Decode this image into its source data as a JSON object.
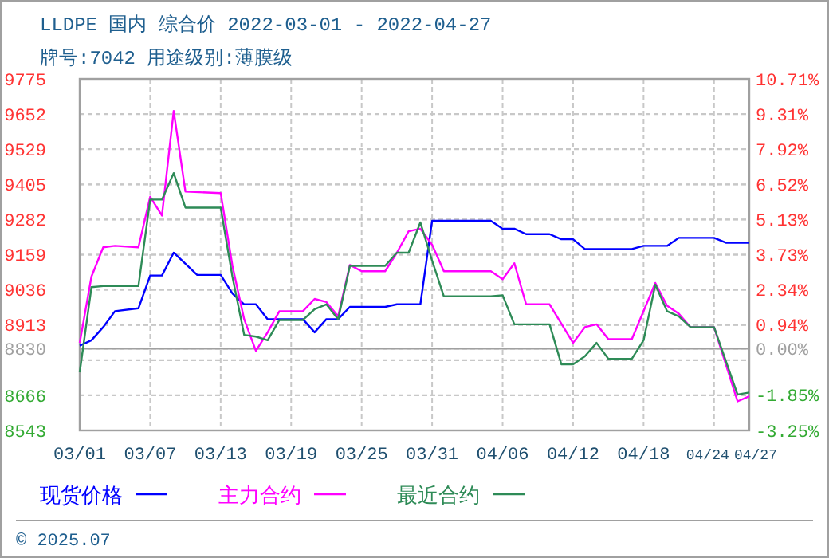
{
  "chart_data": {
    "type": "line",
    "title": "LLDPE 国内 综合价 2022-03-01 - 2022-04-27",
    "subtitle": "牌号:7042 用途级别:薄膜级",
    "xlim": [
      "2022-03-01",
      "2022-04-27"
    ],
    "xticks": [
      {
        "value": "2022-03-01",
        "label": "03/01"
      },
      {
        "value": "2022-03-07",
        "label": "03/07"
      },
      {
        "value": "2022-03-13",
        "label": "03/13"
      },
      {
        "value": "2022-03-19",
        "label": "03/19"
      },
      {
        "value": "2022-03-25",
        "label": "03/25"
      },
      {
        "value": "2022-03-31",
        "label": "03/31"
      },
      {
        "value": "2022-04-06",
        "label": "04/06"
      },
      {
        "value": "2022-04-12",
        "label": "04/12"
      },
      {
        "value": "2022-04-18",
        "label": "04/18"
      },
      {
        "value": "2022-04-24",
        "label": "04/24"
      },
      {
        "value": "2022-04-27",
        "label": "04/27"
      }
    ],
    "ylim": [
      8543,
      9775
    ],
    "yticks": [
      8543,
      8666,
      {
        "value": 8789,
        "label": null
      },
      8830,
      8913,
      9036,
      9159,
      9282,
      9405,
      9529,
      9652,
      9775
    ],
    "y2lim": [
      -3.25,
      10.71
    ],
    "y2ticks": [
      {
        "value": -3.25,
        "label": "-3.25%"
      },
      {
        "value": -1.85,
        "label": "-1.85%"
      },
      {
        "value": -0.46,
        "label": null
      },
      {
        "value": 0,
        "label": "0.00%"
      },
      {
        "value": 0.94,
        "label": "0.94%"
      },
      {
        "value": 2.34,
        "label": "2.34%"
      },
      {
        "value": 3.73,
        "label": "3.73%"
      },
      {
        "value": 5.13,
        "label": "5.13%"
      },
      {
        "value": 6.52,
        "label": "6.52%"
      },
      {
        "value": 7.92,
        "label": "7.92%"
      },
      {
        "value": 9.31,
        "label": "9.31%"
      },
      {
        "value": 10.71,
        "label": "10.71%"
      }
    ],
    "ref_lines": [
      {
        "axis": "y",
        "value": 8830,
        "color": "#a0a0a0"
      }
    ],
    "grid": true,
    "legend": "bottom",
    "marker": "none",
    "line_style": "solid",
    "annotations": [
      "© 2025.07"
    ],
    "series": [
      {
        "name": "现货价格",
        "color": "#0000ff",
        "x": [
          "2022-03-01",
          "2022-03-02",
          "2022-03-03",
          "2022-03-04",
          "2022-03-06",
          "2022-03-07",
          "2022-03-08",
          "2022-03-09",
          "2022-03-11",
          "2022-03-13",
          "2022-03-14",
          "2022-03-15",
          "2022-03-16",
          "2022-03-17",
          "2022-03-20",
          "2022-03-21",
          "2022-03-22",
          "2022-03-23",
          "2022-03-24",
          "2022-03-27",
          "2022-03-28",
          "2022-03-30",
          "2022-03-31",
          "2022-04-05",
          "2022-04-06",
          "2022-04-07",
          "2022-04-08",
          "2022-04-10",
          "2022-04-11",
          "2022-04-12",
          "2022-04-13",
          "2022-04-17",
          "2022-04-18",
          "2022-04-20",
          "2022-04-21",
          "2022-04-24",
          "2022-04-25",
          "2022-04-27"
        ],
        "values": [
          8840,
          8859,
          8905,
          8961,
          8971,
          9086,
          9086,
          9166,
          9088,
          9088,
          9023,
          8985,
          8985,
          8933,
          8933,
          8887,
          8933,
          8933,
          8976,
          8976,
          8985,
          8985,
          9278,
          9278,
          9250,
          9250,
          9231,
          9231,
          9213,
          9213,
          9179,
          9179,
          9190,
          9190,
          9218,
          9218,
          9201,
          9201
        ]
      },
      {
        "name": "主力合约",
        "color": "#ff00ff",
        "x": [
          "2022-03-01",
          "2022-03-02",
          "2022-03-03",
          "2022-03-04",
          "2022-03-06",
          "2022-03-07",
          "2022-03-08",
          "2022-03-09",
          "2022-03-10",
          "2022-03-13",
          "2022-03-14",
          "2022-03-15",
          "2022-03-16",
          "2022-03-17",
          "2022-03-18",
          "2022-03-20",
          "2022-03-21",
          "2022-03-22",
          "2022-03-23",
          "2022-03-24",
          "2022-03-25",
          "2022-03-27",
          "2022-03-28",
          "2022-03-29",
          "2022-03-30",
          "2022-03-31",
          "2022-04-01",
          "2022-04-05",
          "2022-04-06",
          "2022-04-07",
          "2022-04-08",
          "2022-04-10",
          "2022-04-12",
          "2022-04-13",
          "2022-04-14",
          "2022-04-15",
          "2022-04-17",
          "2022-04-19",
          "2022-04-20",
          "2022-04-21",
          "2022-04-22",
          "2022-04-24",
          "2022-04-26",
          "2022-04-27"
        ],
        "values": [
          8850,
          9082,
          9185,
          9190,
          9185,
          9362,
          9296,
          9663,
          9380,
          9375,
          9120,
          8933,
          8822,
          8887,
          8961,
          8961,
          9004,
          8993,
          8943,
          9123,
          9101,
          9101,
          9166,
          9241,
          9250,
          9194,
          9101,
          9101,
          9073,
          9129,
          8985,
          8985,
          8850,
          8905,
          8915,
          8863,
          8863,
          9060,
          8980,
          8952,
          8905,
          8905,
          8645,
          8663
        ]
      },
      {
        "name": "最近合约",
        "color": "#2e8b57",
        "x": [
          "2022-03-01",
          "2022-03-02",
          "2022-03-03",
          "2022-03-06",
          "2022-03-07",
          "2022-03-08",
          "2022-03-09",
          "2022-03-10",
          "2022-03-13",
          "2022-03-14",
          "2022-03-15",
          "2022-03-16",
          "2022-03-17",
          "2022-03-18",
          "2022-03-20",
          "2022-03-21",
          "2022-03-22",
          "2022-03-23",
          "2022-03-24",
          "2022-03-27",
          "2022-03-28",
          "2022-03-29",
          "2022-03-30",
          "2022-03-31",
          "2022-04-01",
          "2022-04-05",
          "2022-04-06",
          "2022-04-07",
          "2022-04-10",
          "2022-04-11",
          "2022-04-12",
          "2022-04-13",
          "2022-04-14",
          "2022-04-15",
          "2022-04-17",
          "2022-04-18",
          "2022-04-19",
          "2022-04-20",
          "2022-04-21",
          "2022-04-22",
          "2022-04-24",
          "2022-04-26",
          "2022-04-27"
        ],
        "values": [
          8747,
          9045,
          9049,
          9049,
          9352,
          9352,
          9445,
          9324,
          9324,
          9082,
          8878,
          8872,
          8859,
          8930,
          8930,
          8968,
          8985,
          8933,
          9120,
          9120,
          9166,
          9166,
          9272,
          9138,
          9013,
          9013,
          9017,
          8915,
          8915,
          8775,
          8775,
          8803,
          8850,
          8794,
          8794,
          8859,
          9054,
          8961,
          8943,
          8905,
          8905,
          8669,
          8676
        ]
      }
    ]
  }
}
